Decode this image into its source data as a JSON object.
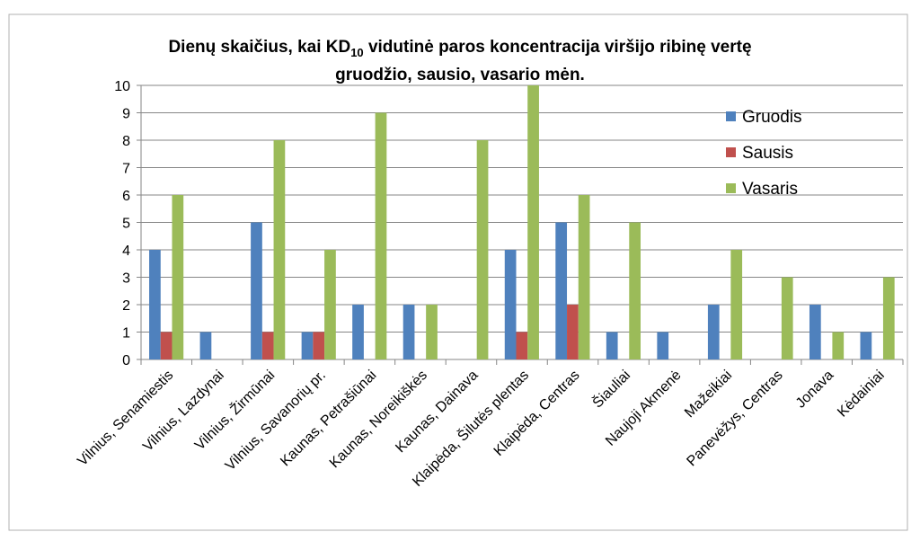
{
  "chart_data": {
    "type": "bar",
    "title": [
      "Dienų skaičius, kai KD",
      "10",
      " vidutinė paros koncentracija viršijo ribinę vertę",
      "gruodžio, sausio, vasario mėn."
    ],
    "categories": [
      "Vilnius, Senamiestis",
      "Vilnius, Lazdynai",
      "Vilnius, Žirmūnai",
      "Vilnius, Savanorių pr.",
      "Kaunas, Petrašiūnai",
      "Kaunas, Noreikiškės",
      "Kaunas, Dainava",
      "Klaipėda, Šilutės plentas",
      "Klaipėda, Centras",
      "Šiauliai",
      "Naujoji Akmenė",
      "Mažeikiai",
      "Panevėžys, Centras",
      "Jonava",
      "Kėdainiai"
    ],
    "series": [
      {
        "name": "Gruodis",
        "color": "#4f81bd",
        "values": [
          4,
          1,
          5,
          1,
          2,
          2,
          0,
          4,
          5,
          1,
          1,
          2,
          0,
          2,
          1
        ]
      },
      {
        "name": "Sausis",
        "color": "#c0504d",
        "values": [
          1,
          0,
          1,
          1,
          0,
          0,
          0,
          1,
          2,
          0,
          0,
          0,
          0,
          0,
          0
        ]
      },
      {
        "name": "Vasaris",
        "color": "#9bbb59",
        "values": [
          6,
          0,
          8,
          4,
          9,
          2,
          8,
          10,
          6,
          5,
          0,
          4,
          3,
          1,
          3
        ]
      }
    ],
    "ylim": [
      0,
      10
    ],
    "yticks": [
      0,
      1,
      2,
      3,
      4,
      5,
      6,
      7,
      8,
      9,
      10
    ],
    "grid": true,
    "legend": "upper right"
  }
}
